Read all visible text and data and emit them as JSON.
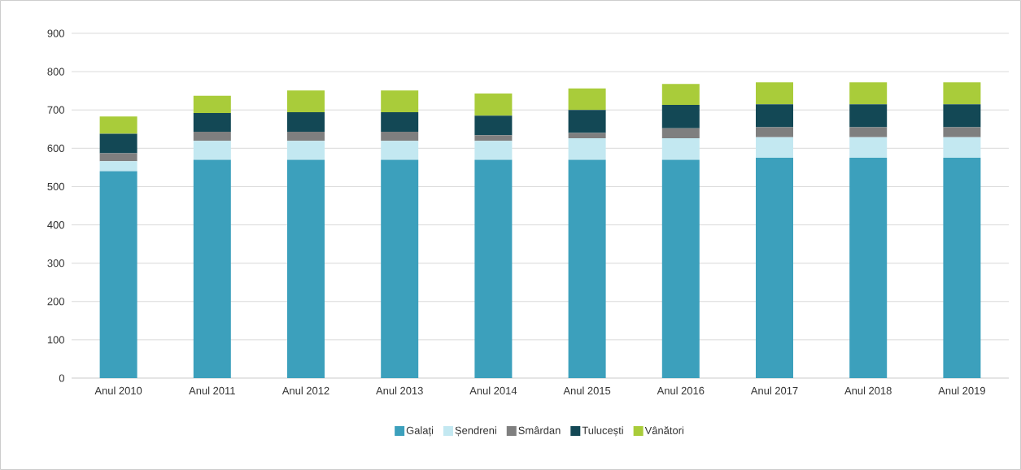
{
  "chart_data": {
    "type": "bar",
    "stacked": true,
    "categories": [
      "Anul 2010",
      "Anul 2011",
      "Anul 2012",
      "Anul 2013",
      "Anul 2014",
      "Anul 2015",
      "Anul 2016",
      "Anul 2017",
      "Anul 2018",
      "Anul 2019"
    ],
    "series": [
      {
        "name": "Galați",
        "color": "#3ca0bc",
        "values": [
          540,
          570,
          570,
          570,
          570,
          570,
          570,
          575,
          575,
          575
        ]
      },
      {
        "name": "Șendreni",
        "color": "#c3e8f1",
        "values": [
          26,
          49,
          49,
          49,
          49,
          56,
          56,
          54,
          54,
          54
        ]
      },
      {
        "name": "Smârdan",
        "color": "#7f7f7f",
        "values": [
          21,
          24,
          24,
          24,
          15,
          14,
          26,
          26,
          26,
          26
        ]
      },
      {
        "name": "Tulucești",
        "color": "#134855",
        "values": [
          51,
          49,
          51,
          51,
          51,
          60,
          61,
          60,
          60,
          60
        ]
      },
      {
        "name": "Vânători",
        "color": "#a9cc3a",
        "values": [
          45,
          45,
          57,
          57,
          58,
          56,
          55,
          57,
          57,
          57
        ]
      }
    ],
    "ylim": [
      0,
      900
    ],
    "yticks": [
      0,
      100,
      200,
      300,
      400,
      500,
      600,
      700,
      800,
      900
    ],
    "grid": "y",
    "legend": "bottom"
  }
}
